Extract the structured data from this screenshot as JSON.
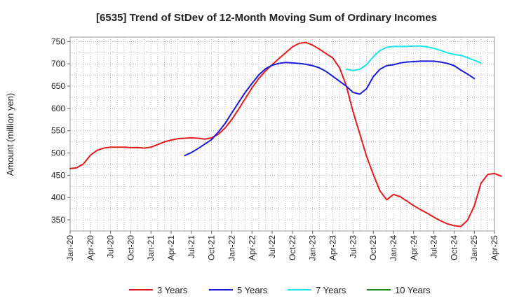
{
  "chart_data": {
    "type": "line",
    "title": "[6535]  Trend of StDev of 12-Month Moving Sum of Ordinary Incomes",
    "xlabel": "",
    "ylabel": "Amount (million yen)",
    "ylim": [
      325,
      760
    ],
    "yticks": [
      350,
      400,
      450,
      500,
      550,
      600,
      650,
      700,
      750
    ],
    "x_start": "2020-01",
    "x_end": "2025-04",
    "x_ticks": [
      "Jan-20",
      "Apr-20",
      "Jul-20",
      "Oct-20",
      "Jan-21",
      "Apr-21",
      "Jul-21",
      "Oct-21",
      "Jan-22",
      "Apr-22",
      "Jul-22",
      "Oct-22",
      "Jan-23",
      "Apr-23",
      "Jul-23",
      "Oct-23",
      "Jan-24",
      "Apr-24",
      "Jul-24",
      "Oct-24",
      "Jan-25",
      "Apr-25"
    ],
    "grid": true,
    "legend_position": "bottom",
    "series": [
      {
        "name": "3 Years",
        "color": "#e31a1c",
        "start": "2020-01",
        "values": [
          465,
          467,
          476,
          495,
          506,
          511,
          513,
          513,
          513,
          512,
          512,
          511,
          513,
          519,
          525,
          529,
          532,
          533,
          534,
          533,
          531,
          534,
          542,
          556,
          575,
          598,
          622,
          646,
          667,
          684,
          698,
          712,
          725,
          738,
          746,
          748,
          742,
          733,
          723,
          713,
          691,
          651,
          593,
          543,
          493,
          452,
          415,
          395,
          407,
          402,
          392,
          382,
          373,
          365,
          356,
          348,
          341,
          337,
          335,
          349,
          381,
          432,
          452,
          454,
          448
        ]
      },
      {
        "name": "5 Years",
        "color": "#1a1adb",
        "start": "2021-06",
        "values": [
          494,
          501,
          510,
          520,
          530,
          547,
          566,
          590,
          613,
          636,
          656,
          675,
          689,
          697,
          701,
          703,
          702,
          701,
          699,
          696,
          691,
          683,
          672,
          661,
          650,
          636,
          632,
          644,
          671,
          688,
          696,
          698,
          702,
          704,
          705,
          706,
          706,
          706,
          704,
          701,
          696,
          686,
          677,
          667
        ]
      },
      {
        "name": "7 Years",
        "color": "#19e6e6",
        "start": "2023-06",
        "values": [
          688,
          685,
          688,
          698,
          716,
          730,
          737,
          739,
          739,
          739,
          740,
          740,
          738,
          735,
          730,
          725,
          721,
          719,
          714,
          708,
          702
        ]
      },
      {
        "name": "10 Years",
        "color": "#1e8c1e",
        "start": "2025-01",
        "values": []
      }
    ]
  }
}
